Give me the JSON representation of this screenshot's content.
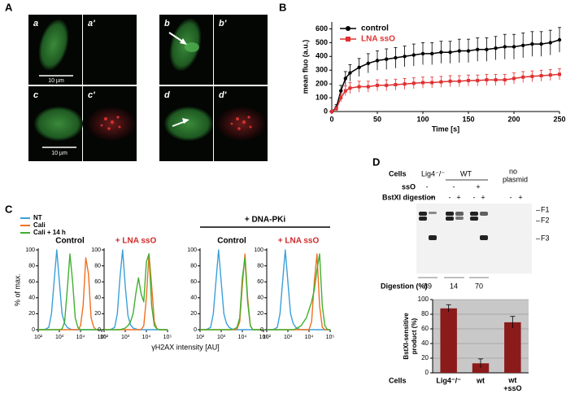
{
  "panel_labels": [
    "A",
    "B",
    "C",
    "D"
  ],
  "micrographs": {
    "labels": [
      "a",
      "a'",
      "b",
      "b'",
      "c",
      "c'",
      "d",
      "d'"
    ],
    "scale_bar": "10 µm"
  },
  "chart_data": [
    {
      "type": "line",
      "ylabel": "mean fluo (a.u.)",
      "xlabel": "Time [s]",
      "legend": "upper left",
      "x": [
        0,
        5,
        10,
        15,
        20,
        30,
        40,
        50,
        60,
        70,
        80,
        90,
        100,
        110,
        120,
        130,
        140,
        150,
        160,
        170,
        180,
        190,
        200,
        210,
        220,
        230,
        240,
        250
      ],
      "series": [
        {
          "name": "control",
          "color": "#000000",
          "marker": "circle",
          "values": [
            0,
            30,
            150,
            240,
            280,
            320,
            350,
            370,
            380,
            390,
            400,
            410,
            420,
            420,
            430,
            430,
            440,
            440,
            450,
            450,
            460,
            470,
            470,
            480,
            490,
            490,
            500,
            520
          ],
          "errors": [
            5,
            20,
            40,
            50,
            60,
            65,
            70,
            70,
            75,
            75,
            75,
            80,
            80,
            80,
            80,
            80,
            85,
            85,
            85,
            85,
            85,
            90,
            90,
            90,
            90,
            90,
            90,
            90
          ]
        },
        {
          "name": "LNA ssO",
          "color": "#e03030",
          "marker": "square",
          "values": [
            0,
            20,
            100,
            150,
            170,
            180,
            180,
            190,
            190,
            195,
            200,
            205,
            210,
            210,
            215,
            220,
            220,
            225,
            225,
            230,
            230,
            230,
            240,
            250,
            255,
            260,
            265,
            270
          ],
          "errors": [
            5,
            15,
            30,
            35,
            40,
            40,
            40,
            40,
            40,
            40,
            40,
            40,
            40,
            40,
            40,
            40,
            40,
            40,
            40,
            40,
            40,
            40,
            40,
            40,
            40,
            40,
            40,
            40
          ]
        }
      ],
      "xlim": [
        0,
        250
      ],
      "xticks": [
        0,
        50,
        100,
        150,
        200,
        250
      ],
      "ylim": [
        0,
        650
      ],
      "yticks": [
        0,
        100,
        200,
        300,
        400,
        500,
        600
      ]
    },
    {
      "type": "flow-histograms",
      "ylabel": "% of max.",
      "xlabel": "γH2AX intensity [AU]",
      "log_x": true,
      "group_label": "+ DNA-PKi",
      "legend": [
        {
          "name": "NT",
          "color": "#3aa0d8"
        },
        {
          "name": "Cali",
          "color": "#f07020"
        },
        {
          "name": "Cali + 14 h",
          "color": "#40b030"
        }
      ],
      "x": [
        100,
        133,
        178,
        237,
        316,
        422,
        562,
        750,
        1000,
        1334,
        1778,
        2371,
        3162,
        4217,
        5623,
        7499,
        10000,
        13335,
        17783,
        23714,
        31623,
        42170,
        56234,
        74989,
        100000
      ],
      "xlim": [
        100,
        100000
      ],
      "xticks": [
        {
          "value": 100,
          "label": "10²"
        },
        {
          "value": 1000,
          "label": "10³"
        },
        {
          "value": 10000,
          "label": "10⁴"
        },
        {
          "value": 100000,
          "label": "10⁵"
        }
      ],
      "ylim": [
        0,
        100
      ],
      "yticks": [
        0,
        20,
        40,
        60,
        80,
        100
      ],
      "panels": [
        {
          "title": "Control",
          "title_color": "#000000",
          "series": [
            {
              "values": [
                0,
                0,
                0,
                1,
                3,
                20,
                60,
                100,
                60,
                20,
                8,
                3,
                1,
                0,
                0,
                0,
                0,
                0,
                0,
                0,
                0,
                0,
                0,
                0,
                0
              ]
            },
            {
              "values": [
                0,
                0,
                0,
                0,
                0,
                0,
                0,
                0,
                0,
                0,
                0,
                0,
                0,
                0,
                0,
                0,
                5,
                30,
                90,
                70,
                15,
                3,
                0,
                0,
                0
              ]
            },
            {
              "values": [
                0,
                0,
                0,
                0,
                0,
                0,
                0,
                0,
                0,
                1,
                10,
                50,
                95,
                60,
                15,
                3,
                0,
                0,
                0,
                0,
                0,
                0,
                0,
                0,
                0
              ]
            }
          ]
        },
        {
          "title": "+ LNA ssO",
          "title_color": "#d02828",
          "series": [
            {
              "values": [
                0,
                0,
                0,
                1,
                3,
                20,
                65,
                100,
                55,
                18,
                6,
                2,
                1,
                0,
                0,
                0,
                0,
                0,
                0,
                0,
                0,
                0,
                0,
                0,
                0
              ]
            },
            {
              "values": [
                0,
                0,
                0,
                0,
                0,
                0,
                0,
                0,
                0,
                0,
                0,
                0,
                0,
                0,
                0,
                5,
                40,
                95,
                55,
                10,
                1,
                0,
                0,
                0,
                0
              ]
            },
            {
              "values": [
                0,
                0,
                0,
                0,
                0,
                0,
                0,
                1,
                2,
                5,
                10,
                20,
                45,
                65,
                45,
                35,
                85,
                95,
                30,
                5,
                1,
                0,
                0,
                0,
                0
              ]
            }
          ]
        },
        {
          "title": "Control",
          "title_color": "#000000",
          "series": [
            {
              "values": [
                0,
                0,
                0,
                1,
                3,
                20,
                60,
                100,
                60,
                20,
                8,
                3,
                1,
                0,
                0,
                0,
                0,
                0,
                0,
                0,
                0,
                0,
                0,
                0,
                0
              ]
            },
            {
              "values": [
                0,
                0,
                0,
                0,
                0,
                0,
                0,
                0,
                0,
                0,
                0,
                0,
                0,
                0,
                1,
                10,
                55,
                95,
                40,
                5,
                0,
                0,
                0,
                0,
                0
              ]
            },
            {
              "values": [
                0,
                0,
                0,
                0,
                0,
                0,
                0,
                0,
                0,
                0,
                0,
                0,
                0,
                1,
                3,
                15,
                65,
                90,
                35,
                5,
                0,
                0,
                0,
                0,
                0
              ]
            }
          ]
        },
        {
          "title": "+ LNA ssO",
          "title_color": "#d02828",
          "series": [
            {
              "values": [
                0,
                0,
                0,
                1,
                3,
                20,
                60,
                100,
                60,
                20,
                8,
                3,
                1,
                0,
                0,
                0,
                0,
                0,
                0,
                0,
                0,
                0,
                0,
                0,
                0
              ]
            },
            {
              "values": [
                0,
                0,
                0,
                0,
                0,
                0,
                0,
                0,
                0,
                0,
                0,
                0,
                0,
                0,
                0,
                0,
                0,
                10,
                60,
                95,
                30,
                3,
                0,
                0,
                0
              ]
            },
            {
              "values": [
                0,
                0,
                0,
                0,
                0,
                0,
                0,
                0,
                0,
                0,
                0,
                1,
                3,
                5,
                10,
                15,
                25,
                35,
                50,
                75,
                95,
                30,
                5,
                0,
                0
              ]
            }
          ]
        }
      ]
    },
    {
      "type": "bar",
      "ylabel": [
        "BstXI-sensitive",
        "product  (%)"
      ],
      "xlabel": "Cells",
      "categories": [
        "Lig4⁻/⁻",
        "wt",
        "wt +ssO"
      ],
      "values": [
        88,
        13,
        69
      ],
      "errors": [
        5,
        6,
        8
      ],
      "color": "#8b1a1a",
      "background": "#c8c8c8",
      "grid": true,
      "ylim": [
        0,
        100
      ],
      "yticks": [
        0,
        20,
        40,
        60,
        80,
        100
      ]
    }
  ],
  "gel": {
    "row_labels": {
      "cells": "Cells",
      "sso": "ssO",
      "digestion": "BstXI digestion"
    },
    "cell_groups": [
      "Lig4⁻/⁻",
      "WT",
      "no",
      "plasmid"
    ],
    "sso_signs": [
      "-",
      "-",
      "+"
    ],
    "digestion_signs": [
      "-",
      "+",
      "-",
      "+",
      "-",
      "+",
      "-",
      "+"
    ],
    "bands": [
      "F1",
      "F2",
      "F3"
    ],
    "digestion_label": "Digestion (%)",
    "digestion_values": [
      89,
      14,
      70
    ]
  }
}
